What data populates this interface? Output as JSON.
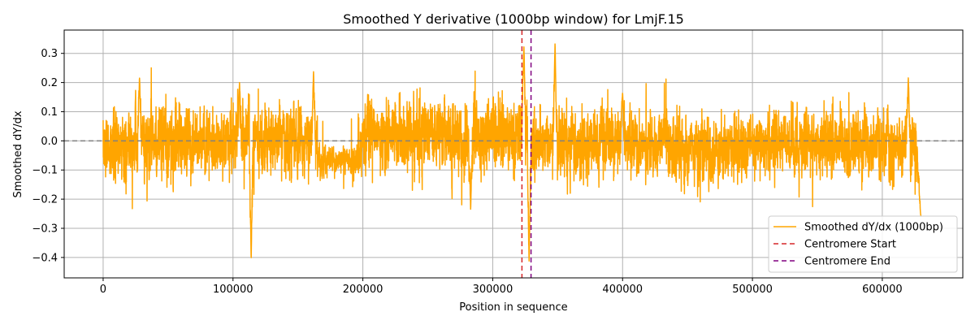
{
  "chart_data": {
    "type": "line",
    "title": "Smoothed Y derivative (1000bp window) for LmjF.15",
    "xlabel": "Position in sequence",
    "ylabel": "Smoothed dY/dx",
    "xlim": [
      -30000,
      662000
    ],
    "ylim": [
      -0.47,
      0.38
    ],
    "xticks": [
      0,
      100000,
      200000,
      300000,
      400000,
      500000,
      600000
    ],
    "xtick_labels": [
      "0",
      "100000",
      "200000",
      "300000",
      "400000",
      "500000",
      "600000"
    ],
    "yticks": [
      -0.4,
      -0.3,
      -0.2,
      -0.1,
      0.0,
      0.1,
      0.2,
      0.3
    ],
    "ytick_labels": [
      "−0.4",
      "−0.3",
      "−0.2",
      "−0.1",
      "0.0",
      "0.1",
      "0.2",
      "0.3"
    ],
    "grid": true,
    "legend_position": "lower-right",
    "series": [
      {
        "name": "Smoothed dY/dx (1000bp)",
        "color": "#ffa500",
        "x_range": [
          0,
          630000
        ],
        "approx_extrema": [
          {
            "x": 28000,
            "y": 0.22
          },
          {
            "x": 105000,
            "y": 0.2
          },
          {
            "x": 114000,
            "y": -0.41
          },
          {
            "x": 162000,
            "y": 0.24
          },
          {
            "x": 283000,
            "y": -0.24
          },
          {
            "x": 324000,
            "y": 0.33
          },
          {
            "x": 328000,
            "y": -0.42
          },
          {
            "x": 348000,
            "y": 0.34
          },
          {
            "x": 400000,
            "y": 0.17
          },
          {
            "x": 620000,
            "y": 0.22
          },
          {
            "x": 630000,
            "y": -0.26
          }
        ]
      }
    ],
    "reference_lines": [
      {
        "name": "zero-line",
        "orientation": "horizontal",
        "value": 0.0,
        "color": "#808080",
        "style": "dashed"
      },
      {
        "name": "Centromere Start",
        "orientation": "vertical",
        "value": 322500,
        "color": "#d62728",
        "style": "dashed"
      },
      {
        "name": "Centromere End",
        "orientation": "vertical",
        "value": 329500,
        "color": "#800080",
        "style": "dashed"
      }
    ],
    "legend": [
      {
        "label": "Smoothed dY/dx (1000bp)",
        "color": "#ffa500",
        "style": "solid"
      },
      {
        "label": "Centromere Start",
        "color": "#d62728",
        "style": "dashed"
      },
      {
        "label": "Centromere End",
        "color": "#800080",
        "style": "dashed"
      }
    ]
  }
}
